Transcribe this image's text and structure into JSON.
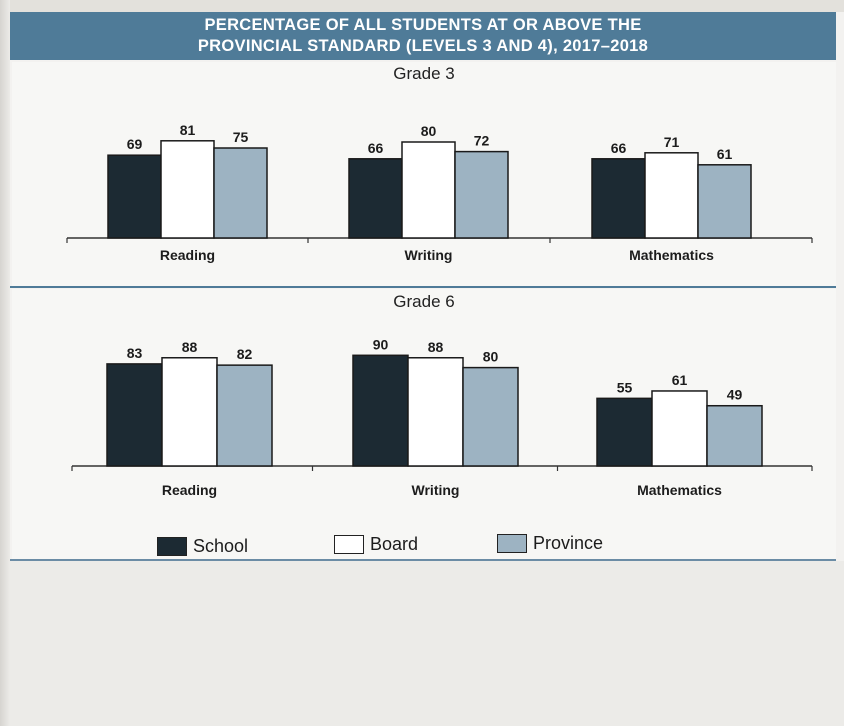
{
  "header": {
    "title_line1": "PERCENTAGE OF ALL STUDENTS AT OR ABOVE THE",
    "title_line2": "PROVINCIAL STANDARD (LEVELS 3 AND 4), 2017–2018"
  },
  "colors": {
    "header_bg": "#4f7b98",
    "school": "#1c2a33",
    "board": "#ffffff",
    "province": "#9db3c2"
  },
  "legend": [
    {
      "name": "School",
      "color": "#1c2a33"
    },
    {
      "name": "Board",
      "color": "#ffffff"
    },
    {
      "name": "Province",
      "color": "#9db3c2"
    }
  ],
  "chart_data": [
    {
      "type": "bar",
      "title": "Grade 3",
      "categories": [
        "Reading",
        "Writing",
        "Mathematics"
      ],
      "series": [
        {
          "name": "School",
          "values": [
            69,
            66,
            66
          ]
        },
        {
          "name": "Board",
          "values": [
            81,
            80,
            71
          ]
        },
        {
          "name": "Province",
          "values": [
            75,
            72,
            61
          ]
        }
      ],
      "ylim": [
        0,
        100
      ],
      "grid": false,
      "legend_position": "bottom"
    },
    {
      "type": "bar",
      "title": "Grade 6",
      "categories": [
        "Reading",
        "Writing",
        "Mathematics"
      ],
      "series": [
        {
          "name": "School",
          "values": [
            83,
            90,
            55
          ]
        },
        {
          "name": "Board",
          "values": [
            88,
            88,
            61
          ]
        },
        {
          "name": "Province",
          "values": [
            82,
            80,
            49
          ]
        }
      ],
      "ylim": [
        0,
        100
      ],
      "grid": false,
      "legend_position": "bottom"
    }
  ]
}
